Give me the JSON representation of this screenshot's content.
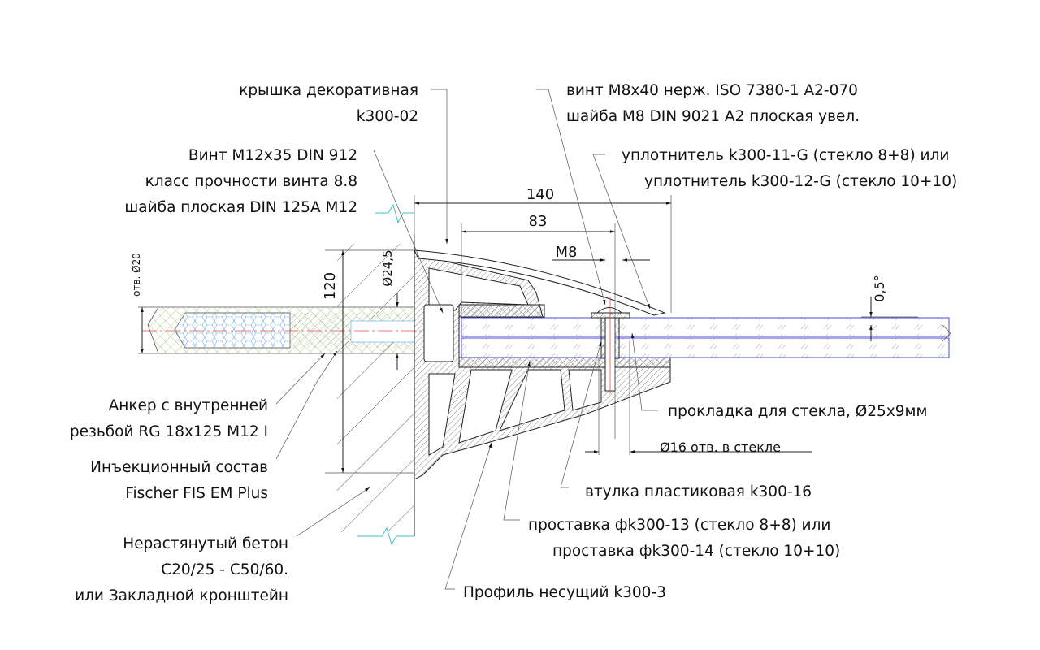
{
  "labels": {
    "cover": [
      "крышка декоративная",
      "k300-02"
    ],
    "bolt_m12": [
      "Винт M12x35 DIN 912",
      "класс прочности винта 8.8",
      "шайба плоская DIN 125A M12"
    ],
    "screw_m8": [
      "винт M8x40 нерж. ISO 7380-1 A2-070",
      "шайба M8 DIN 9021 A2 плоская увел."
    ],
    "seal": [
      "уплотнитель k300-11-G (стекло 8+8) или",
      "уплотнитель k300-12-G (стекло 10+10)"
    ],
    "anchor": [
      "Анкер с внутренней",
      "резьбой RG 18x125 M12 I"
    ],
    "injection": [
      "Инъекционный состав",
      "Fischer FIS EM Plus"
    ],
    "concrete": [
      "Нерастянутый бетон",
      "C20/25 - C50/60.",
      "или Закладной кронштейн"
    ],
    "gasket": "прокладка для стекла, Ø25x9мм",
    "glass_hole": "Ø16 отв. в стекле",
    "bushing": "втулка пластиковая k300-16",
    "spacer": [
      "проставка фk300-13 (стекло 8+8) или",
      "проставка фk300-14 (стекло 10+10)"
    ],
    "profile": "Профиль несущий k300-3"
  },
  "dimensions": {
    "d140": "140",
    "d83": "83",
    "m8": "M8",
    "d120": "120",
    "d24_5": "Ø24,5",
    "hole20": "отв. Ø20",
    "angle": "0,5°"
  },
  "colors": {
    "line": "#222222",
    "glass": "#3b3bd6",
    "anchor_hatch": "#8fbf5a",
    "resin": "#7ab0e8",
    "axis": "#e05050",
    "break_line": "#40c0c0"
  }
}
